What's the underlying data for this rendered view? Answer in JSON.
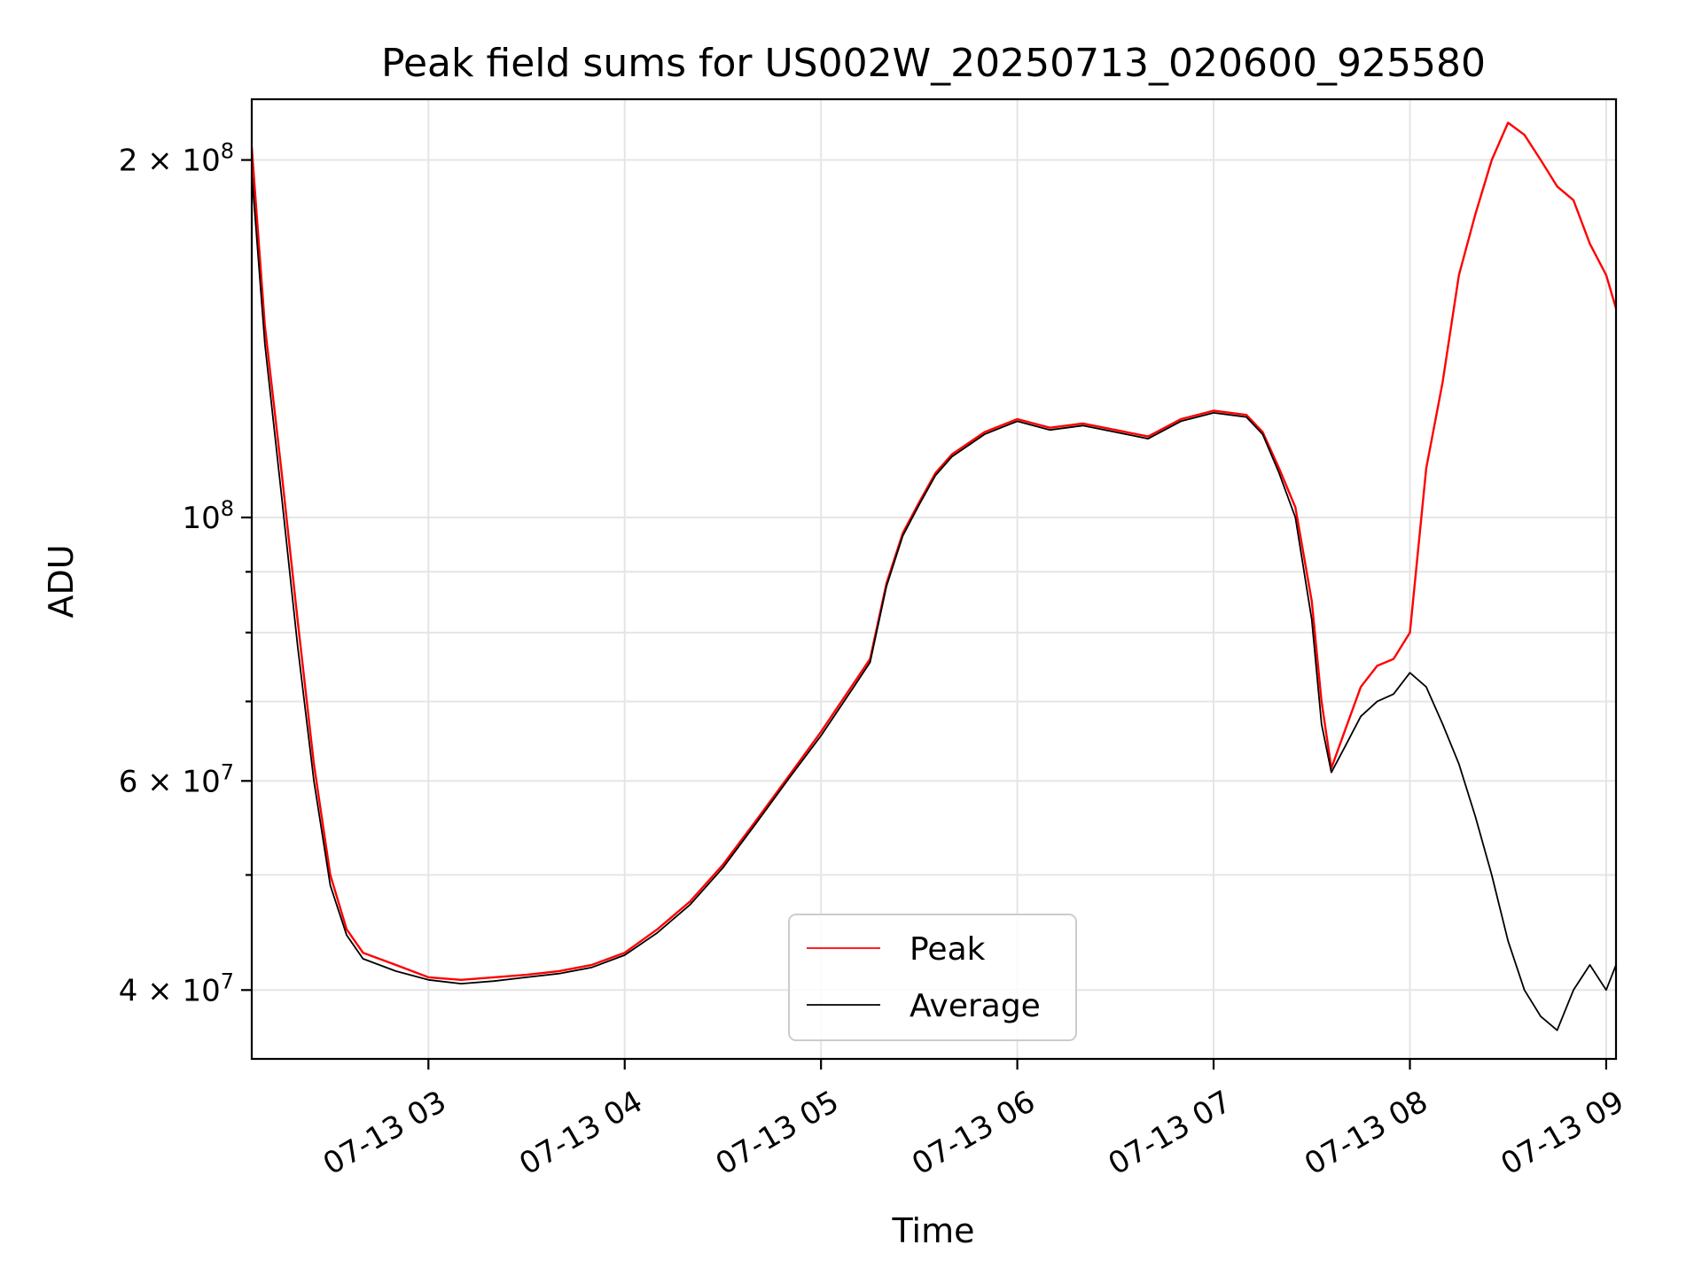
{
  "chart_data": {
    "type": "line",
    "title": "Peak field sums for US002W_20250713_020600_925580",
    "xlabel": "Time",
    "ylabel": "ADU",
    "y_scale": "log",
    "x_range": [
      "2025-07-13 02:06",
      "2025-07-13 09:03"
    ],
    "ylim": [
      35000000,
      225000000
    ],
    "grid": true,
    "legend_position": "bottom-center",
    "x_ticks": [
      {
        "label": "07-13 03",
        "value": "2025-07-13 03:00"
      },
      {
        "label": "07-13 04",
        "value": "2025-07-13 04:00"
      },
      {
        "label": "07-13 05",
        "value": "2025-07-13 05:00"
      },
      {
        "label": "07-13 06",
        "value": "2025-07-13 06:00"
      },
      {
        "label": "07-13 07",
        "value": "2025-07-13 07:00"
      },
      {
        "label": "07-13 08",
        "value": "2025-07-13 08:00"
      },
      {
        "label": "07-13 09",
        "value": "2025-07-13 09:00"
      }
    ],
    "y_ticks": [
      {
        "mantissa": "4",
        "exponent": "7",
        "value": 40000000
      },
      {
        "mantissa": "6",
        "exponent": "7",
        "value": 60000000
      },
      {
        "mantissa": "",
        "exponent": "8",
        "value": 100000000
      },
      {
        "mantissa": "2",
        "exponent": "8",
        "value": 200000000
      }
    ],
    "y_minor_ticks": [
      50000000,
      70000000,
      80000000,
      90000000
    ],
    "series": [
      {
        "name": "Peak",
        "color": "#ff0000",
        "x": [
          "2025-07-13 02:06",
          "2025-07-13 02:10",
          "2025-07-13 02:15",
          "2025-07-13 02:20",
          "2025-07-13 02:25",
          "2025-07-13 02:30",
          "2025-07-13 02:35",
          "2025-07-13 02:40",
          "2025-07-13 02:50",
          "2025-07-13 03:00",
          "2025-07-13 03:10",
          "2025-07-13 03:20",
          "2025-07-13 03:30",
          "2025-07-13 03:40",
          "2025-07-13 03:50",
          "2025-07-13 04:00",
          "2025-07-13 04:10",
          "2025-07-13 04:20",
          "2025-07-13 04:30",
          "2025-07-13 04:40",
          "2025-07-13 04:50",
          "2025-07-13 05:00",
          "2025-07-13 05:10",
          "2025-07-13 05:15",
          "2025-07-13 05:20",
          "2025-07-13 05:25",
          "2025-07-13 05:30",
          "2025-07-13 05:35",
          "2025-07-13 05:40",
          "2025-07-13 05:50",
          "2025-07-13 06:00",
          "2025-07-13 06:10",
          "2025-07-13 06:20",
          "2025-07-13 06:30",
          "2025-07-13 06:40",
          "2025-07-13 06:50",
          "2025-07-13 07:00",
          "2025-07-13 07:10",
          "2025-07-13 07:15",
          "2025-07-13 07:20",
          "2025-07-13 07:25",
          "2025-07-13 07:30",
          "2025-07-13 07:33",
          "2025-07-13 07:36",
          "2025-07-13 07:40",
          "2025-07-13 07:45",
          "2025-07-13 07:50",
          "2025-07-13 07:55",
          "2025-07-13 08:00",
          "2025-07-13 08:05",
          "2025-07-13 08:10",
          "2025-07-13 08:15",
          "2025-07-13 08:20",
          "2025-07-13 08:25",
          "2025-07-13 08:30",
          "2025-07-13 08:35",
          "2025-07-13 08:40",
          "2025-07-13 08:45",
          "2025-07-13 08:50",
          "2025-07-13 08:55",
          "2025-07-13 09:00",
          "2025-07-13 09:03"
        ],
        "values": [
          205000000,
          145000000,
          110000000,
          82000000,
          62000000,
          50000000,
          45000000,
          43000000,
          42000000,
          41000000,
          40800000,
          41000000,
          41200000,
          41500000,
          42000000,
          43000000,
          45000000,
          47500000,
          51000000,
          55500000,
          60500000,
          66000000,
          72500000,
          76000000,
          88000000,
          97000000,
          103000000,
          109000000,
          113000000,
          118000000,
          121000000,
          119000000,
          120000000,
          118500000,
          117000000,
          121000000,
          123000000,
          122000000,
          118000000,
          110000000,
          102000000,
          85000000,
          70000000,
          61500000,
          66000000,
          72000000,
          75000000,
          76000000,
          80000000,
          110000000,
          130000000,
          160000000,
          180000000,
          200000000,
          215000000,
          210000000,
          200000000,
          190000000,
          185000000,
          170000000,
          160000000,
          150000000
        ]
      },
      {
        "name": "Average",
        "color": "#000000",
        "x": [
          "2025-07-13 02:06",
          "2025-07-13 02:10",
          "2025-07-13 02:15",
          "2025-07-13 02:20",
          "2025-07-13 02:25",
          "2025-07-13 02:30",
          "2025-07-13 02:35",
          "2025-07-13 02:40",
          "2025-07-13 02:50",
          "2025-07-13 03:00",
          "2025-07-13 03:10",
          "2025-07-13 03:20",
          "2025-07-13 03:30",
          "2025-07-13 03:40",
          "2025-07-13 03:50",
          "2025-07-13 04:00",
          "2025-07-13 04:10",
          "2025-07-13 04:20",
          "2025-07-13 04:30",
          "2025-07-13 04:40",
          "2025-07-13 04:50",
          "2025-07-13 05:00",
          "2025-07-13 05:10",
          "2025-07-13 05:15",
          "2025-07-13 05:20",
          "2025-07-13 05:25",
          "2025-07-13 05:30",
          "2025-07-13 05:35",
          "2025-07-13 05:40",
          "2025-07-13 05:50",
          "2025-07-13 06:00",
          "2025-07-13 06:10",
          "2025-07-13 06:20",
          "2025-07-13 06:30",
          "2025-07-13 06:40",
          "2025-07-13 06:50",
          "2025-07-13 07:00",
          "2025-07-13 07:10",
          "2025-07-13 07:15",
          "2025-07-13 07:20",
          "2025-07-13 07:25",
          "2025-07-13 07:30",
          "2025-07-13 07:33",
          "2025-07-13 07:36",
          "2025-07-13 07:40",
          "2025-07-13 07:45",
          "2025-07-13 07:50",
          "2025-07-13 07:55",
          "2025-07-13 08:00",
          "2025-07-13 08:05",
          "2025-07-13 08:10",
          "2025-07-13 08:15",
          "2025-07-13 08:20",
          "2025-07-13 08:25",
          "2025-07-13 08:30",
          "2025-07-13 08:35",
          "2025-07-13 08:40",
          "2025-07-13 08:45",
          "2025-07-13 08:50",
          "2025-07-13 08:55",
          "2025-07-13 09:00",
          "2025-07-13 09:03"
        ],
        "values": [
          195000000,
          140000000,
          105000000,
          78000000,
          60000000,
          49000000,
          44500000,
          42500000,
          41500000,
          40800000,
          40500000,
          40700000,
          41000000,
          41300000,
          41800000,
          42800000,
          44700000,
          47200000,
          50700000,
          55200000,
          60200000,
          65500000,
          72000000,
          75500000,
          87500000,
          96500000,
          102500000,
          108500000,
          112500000,
          117500000,
          120500000,
          118500000,
          119500000,
          118000000,
          116500000,
          120500000,
          122500000,
          121500000,
          117500000,
          109000000,
          100000000,
          82000000,
          67000000,
          61000000,
          64000000,
          68000000,
          70000000,
          71000000,
          74000000,
          72000000,
          67000000,
          62000000,
          56000000,
          50000000,
          44000000,
          40000000,
          38000000,
          37000000,
          40000000,
          42000000,
          40000000,
          42000000
        ]
      }
    ]
  }
}
